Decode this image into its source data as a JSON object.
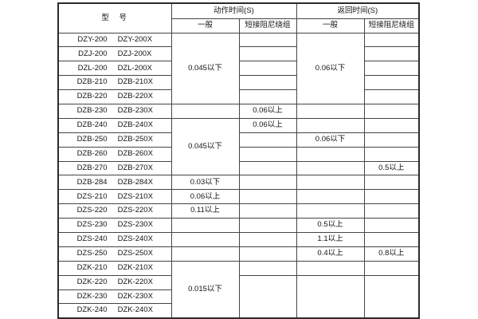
{
  "page": {
    "background": "#ffffff",
    "border_color": "#454545",
    "text_color": "#141414"
  },
  "table": {
    "header": {
      "model": "型 号",
      "action_time": "动作时间(S)",
      "return_time": "返回时间(S)",
      "general": "一般",
      "short_damping": "短接阻尼绕组"
    },
    "models": [
      [
        "DZY-200",
        "DZY-200X"
      ],
      [
        "DZJ-200",
        "DZJ-200X"
      ],
      [
        "DZL-200",
        "DZL-200X"
      ],
      [
        "DZB-210",
        "DZB-210X"
      ],
      [
        "DZB-220",
        "DZB-220X"
      ],
      [
        "DZB-230",
        "DZB-230X"
      ],
      [
        "DZB-240",
        "DZB-240X"
      ],
      [
        "DZB-250",
        "DZB-250X"
      ],
      [
        "DZB-260",
        "DZB-260X"
      ],
      [
        "DZB-270",
        "DZB-270X"
      ],
      [
        "DZB-284",
        "DZB-284X"
      ],
      [
        "DZS-210",
        "DZS-210X"
      ],
      [
        "DZS-220",
        "DZS-220X"
      ],
      [
        "DZS-230",
        "DZS-230X"
      ],
      [
        "DZS-240",
        "DZS-240X"
      ],
      [
        "DZS-250",
        "DZS-250X"
      ],
      [
        "DZK-210",
        "DZK-210X"
      ],
      [
        "DZK-220",
        "DZK-220X"
      ],
      [
        "DZK-230",
        "DZK-230X"
      ],
      [
        "DZK-240",
        "DZK-240X"
      ]
    ],
    "columns": {
      "action_general": [
        {
          "row": 1,
          "span": 5,
          "text": "0.045以下"
        },
        {
          "row": 6,
          "span": 1,
          "text": ""
        },
        {
          "row": 7,
          "span": 4,
          "text": "0.045以下"
        },
        {
          "row": 11,
          "span": 1,
          "text": "0.03以下"
        },
        {
          "row": 12,
          "span": 1,
          "text": "0.06以上"
        },
        {
          "row": 13,
          "span": 1,
          "text": "0.11以上"
        },
        {
          "row": 14,
          "span": 1,
          "text": ""
        },
        {
          "row": 15,
          "span": 1,
          "text": ""
        },
        {
          "row": 16,
          "span": 1,
          "text": ""
        },
        {
          "row": 17,
          "span": 4,
          "text": "0.015以下"
        }
      ],
      "action_damped": [
        {
          "row": 1,
          "span": 1,
          "text": ""
        },
        {
          "row": 2,
          "span": 1,
          "text": ""
        },
        {
          "row": 3,
          "span": 1,
          "text": ""
        },
        {
          "row": 4,
          "span": 1,
          "text": ""
        },
        {
          "row": 5,
          "span": 1,
          "text": ""
        },
        {
          "row": 6,
          "span": 1,
          "text": "0.06以上"
        },
        {
          "row": 7,
          "span": 1,
          "text": "0.06以上"
        },
        {
          "row": 8,
          "span": 1,
          "text": ""
        },
        {
          "row": 9,
          "span": 1,
          "text": ""
        },
        {
          "row": 10,
          "span": 1,
          "text": ""
        },
        {
          "row": 11,
          "span": 1,
          "text": ""
        },
        {
          "row": 12,
          "span": 1,
          "text": ""
        },
        {
          "row": 13,
          "span": 1,
          "text": ""
        },
        {
          "row": 14,
          "span": 1,
          "text": ""
        },
        {
          "row": 15,
          "span": 1,
          "text": ""
        },
        {
          "row": 16,
          "span": 1,
          "text": ""
        },
        {
          "row": 17,
          "span": 1,
          "text": ""
        },
        {
          "row": 18,
          "span": 3,
          "text": ""
        }
      ],
      "return_general": [
        {
          "row": 1,
          "span": 5,
          "text": "0.06以下"
        },
        {
          "row": 6,
          "span": 1,
          "text": ""
        },
        {
          "row": 7,
          "span": 1,
          "text": ""
        },
        {
          "row": 8,
          "span": 1,
          "text": "0.06以下"
        },
        {
          "row": 9,
          "span": 1,
          "text": ""
        },
        {
          "row": 10,
          "span": 1,
          "text": ""
        },
        {
          "row": 11,
          "span": 1,
          "text": ""
        },
        {
          "row": 12,
          "span": 1,
          "text": ""
        },
        {
          "row": 13,
          "span": 1,
          "text": ""
        },
        {
          "row": 14,
          "span": 1,
          "text": "0.5以上"
        },
        {
          "row": 15,
          "span": 1,
          "text": "1.1以上"
        },
        {
          "row": 16,
          "span": 1,
          "text": "0.4以上"
        },
        {
          "row": 17,
          "span": 1,
          "text": ""
        },
        {
          "row": 18,
          "span": 3,
          "text": ""
        }
      ],
      "return_damped": [
        {
          "row": 1,
          "span": 1,
          "text": ""
        },
        {
          "row": 2,
          "span": 1,
          "text": ""
        },
        {
          "row": 3,
          "span": 1,
          "text": ""
        },
        {
          "row": 4,
          "span": 1,
          "text": ""
        },
        {
          "row": 5,
          "span": 1,
          "text": ""
        },
        {
          "row": 6,
          "span": 1,
          "text": ""
        },
        {
          "row": 7,
          "span": 1,
          "text": ""
        },
        {
          "row": 8,
          "span": 1,
          "text": ""
        },
        {
          "row": 9,
          "span": 1,
          "text": ""
        },
        {
          "row": 10,
          "span": 1,
          "text": "0.5以上"
        },
        {
          "row": 11,
          "span": 1,
          "text": ""
        },
        {
          "row": 12,
          "span": 1,
          "text": ""
        },
        {
          "row": 13,
          "span": 1,
          "text": ""
        },
        {
          "row": 14,
          "span": 1,
          "text": ""
        },
        {
          "row": 15,
          "span": 1,
          "text": ""
        },
        {
          "row": 16,
          "span": 1,
          "text": "0.8以上"
        },
        {
          "row": 17,
          "span": 1,
          "text": ""
        },
        {
          "row": 18,
          "span": 3,
          "text": ""
        }
      ]
    }
  }
}
